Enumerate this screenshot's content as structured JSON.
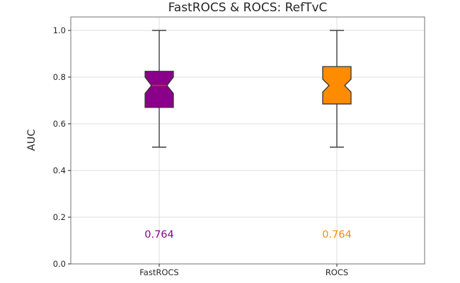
{
  "chart_data": {
    "type": "box",
    "title": "FastROCS & ROCS: RefTvC",
    "ylabel": "AUC",
    "xlabel": "",
    "ylim": [
      0.0,
      1.06
    ],
    "grid": true,
    "legend": "none",
    "yticks": [
      "0.0",
      "0.2",
      "0.4",
      "0.6",
      "0.8",
      "1.0"
    ],
    "ytick_values": [
      0.0,
      0.2,
      0.4,
      0.6,
      0.8,
      1.0
    ],
    "categories": [
      "FastROCS",
      "ROCS"
    ],
    "annotation_y_value": 0.125,
    "series": [
      {
        "name": "FastROCS",
        "color": "#8B008B",
        "median_color": "#B03038",
        "whisker_low": 0.5,
        "q1": 0.67,
        "median": 0.764,
        "q3": 0.825,
        "whisker_high": 1.0,
        "notch_low": 0.73,
        "notch_high": 0.8,
        "annotation": "0.764"
      },
      {
        "name": "ROCS",
        "color": "#FF8C00",
        "median_color": "#FF8C00",
        "whisker_low": 0.5,
        "q1": 0.685,
        "median": 0.764,
        "q3": 0.845,
        "whisker_high": 1.0,
        "notch_low": 0.736,
        "notch_high": 0.791,
        "annotation": "0.764"
      }
    ],
    "colors": {
      "grid": "#dcdcdc",
      "spine": "#707070",
      "whisker": "#404040",
      "box_edge": "#333333",
      "text": "#262626",
      "background": "#ffffff"
    }
  }
}
